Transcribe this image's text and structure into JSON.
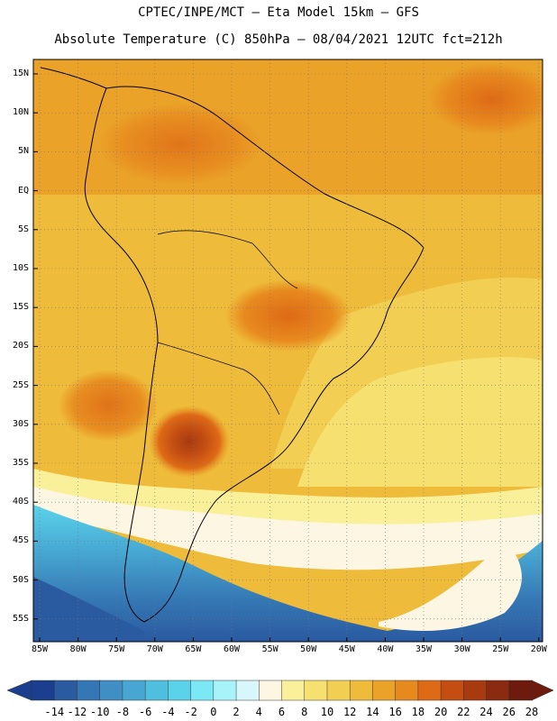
{
  "title": {
    "line1": "CPTEC/INPE/MCT –  Eta Model 15km – GFS",
    "line2": "Absolute Temperature (C) 850hPa – 08/04/2021 12UTC fct=212h"
  },
  "map": {
    "lat_labels": [
      "15N",
      "10N",
      "5N",
      "EQ",
      "5S",
      "10S",
      "15S",
      "20S",
      "25S",
      "30S",
      "35S",
      "40S",
      "45S",
      "50S",
      "55S"
    ],
    "lon_labels": [
      "85W",
      "80W",
      "75W",
      "70W",
      "65W",
      "60W",
      "55W",
      "50W",
      "45W",
      "40W",
      "35W",
      "30W",
      "25W",
      "20W"
    ]
  },
  "colorbar": {
    "labels": [
      "-14",
      "-12",
      "-10",
      "-8",
      "-6",
      "-4",
      "-2",
      "0",
      "2",
      "4",
      "6",
      "8",
      "10",
      "12",
      "14",
      "16",
      "18",
      "20",
      "22",
      "24",
      "26",
      "28"
    ],
    "colors": [
      "#1b3f8e",
      "#2a5aa0",
      "#3577b4",
      "#3f8fc4",
      "#47a7d2",
      "#4fbfe0",
      "#5ad3ea",
      "#7ae8f5",
      "#a8f3fa",
      "#d8f7fc",
      "#fdf6e2",
      "#fbf09a",
      "#f6e070",
      "#f2ce52",
      "#eebb3a",
      "#eaa229",
      "#e78a1e",
      "#de6a16",
      "#c44e12",
      "#a83a10",
      "#8a2a10",
      "#6e1a0c"
    ]
  }
}
